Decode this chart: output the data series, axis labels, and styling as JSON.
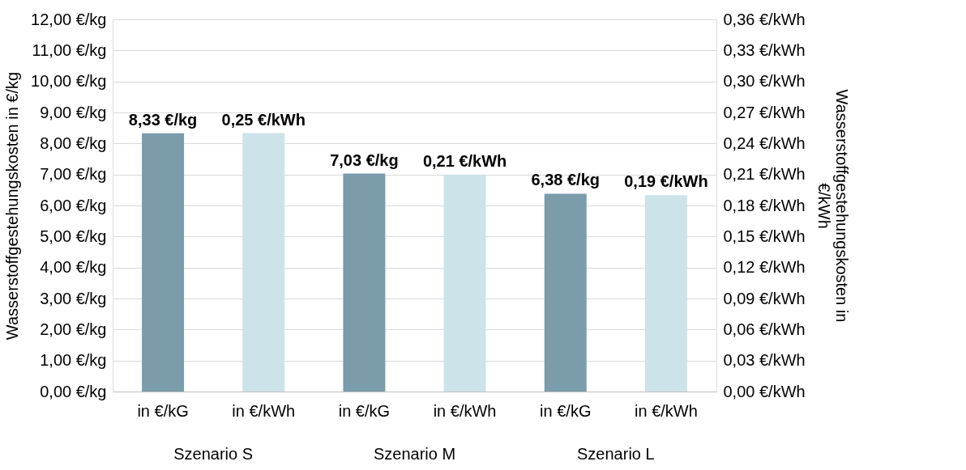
{
  "chart_data": {
    "type": "bar",
    "categories": [
      "in €/kG",
      "in €/kWh",
      "in €/kG",
      "in €/kWh",
      "in €/kG",
      "in €/kWh"
    ],
    "series": [
      {
        "color": "#7b9caa",
        "values": [
          8.33,
          null,
          7.03,
          null,
          6.38,
          null
        ],
        "value_labels": [
          "8,33 €/kg",
          null,
          "7,03 €/kg",
          null,
          "6,38 €/kg",
          null
        ]
      },
      {
        "color": "#cde3ea",
        "axis": "y2",
        "values": [
          null,
          0.25,
          null,
          0.21,
          null,
          0.19
        ],
        "value_labels": [
          null,
          "0,25 €/kWh",
          null,
          "0,21 €/kWh",
          null,
          "0,19 €/kWh"
        ]
      }
    ],
    "ylabel": "Wasserstoffgestehungskosten in €/kg",
    "y2label": "Wasserstoffgestehungskosten in €/kWh",
    "ylim": [
      0,
      12
    ],
    "yticks": [
      {
        "value": 0,
        "label": "0,00 €/kg"
      },
      {
        "value": 1,
        "label": "1,00 €/kg"
      },
      {
        "value": 2,
        "label": "2,00 €/kg"
      },
      {
        "value": 3,
        "label": "3,00 €/kg"
      },
      {
        "value": 4,
        "label": "4,00 €/kg"
      },
      {
        "value": 5,
        "label": "5,00 €/kg"
      },
      {
        "value": 6,
        "label": "6,00 €/kg"
      },
      {
        "value": 7,
        "label": "7,00 €/kg"
      },
      {
        "value": 8,
        "label": "8,00 €/kg"
      },
      {
        "value": 9,
        "label": "9,00 €/kg"
      },
      {
        "value": 10,
        "label": "10,00 €/kg"
      },
      {
        "value": 11,
        "label": "11,00 €/kg"
      },
      {
        "value": 12,
        "label": "12,00 €/kg"
      }
    ],
    "y2lim": [
      0,
      0.36
    ],
    "y2ticks": [
      {
        "value": 0,
        "label": "0,00 €/kWh"
      },
      {
        "value": 0.03,
        "label": "0,03 €/kWh"
      },
      {
        "value": 0.06,
        "label": "0,06 €/kWh"
      },
      {
        "value": 0.09,
        "label": "0,09 €/kWh"
      },
      {
        "value": 0.12,
        "label": "0,12 €/kWh"
      },
      {
        "value": 0.15,
        "label": "0,15 €/kWh"
      },
      {
        "value": 0.18,
        "label": "0,18 €/kWh"
      },
      {
        "value": 0.21,
        "label": "0,21 €/kWh"
      },
      {
        "value": 0.24,
        "label": "0,24 €/kWh"
      },
      {
        "value": 0.27,
        "label": "0,27 €/kWh"
      },
      {
        "value": 0.3,
        "label": "0,30 €/kWh"
      },
      {
        "value": 0.33,
        "label": "0,33 €/kWh"
      },
      {
        "value": 0.36,
        "label": "0,36 €/kWh"
      }
    ],
    "annotations": [
      "Szenario S",
      "Szenario M",
      "Szenario L"
    ],
    "grid": "y",
    "legend": false
  }
}
